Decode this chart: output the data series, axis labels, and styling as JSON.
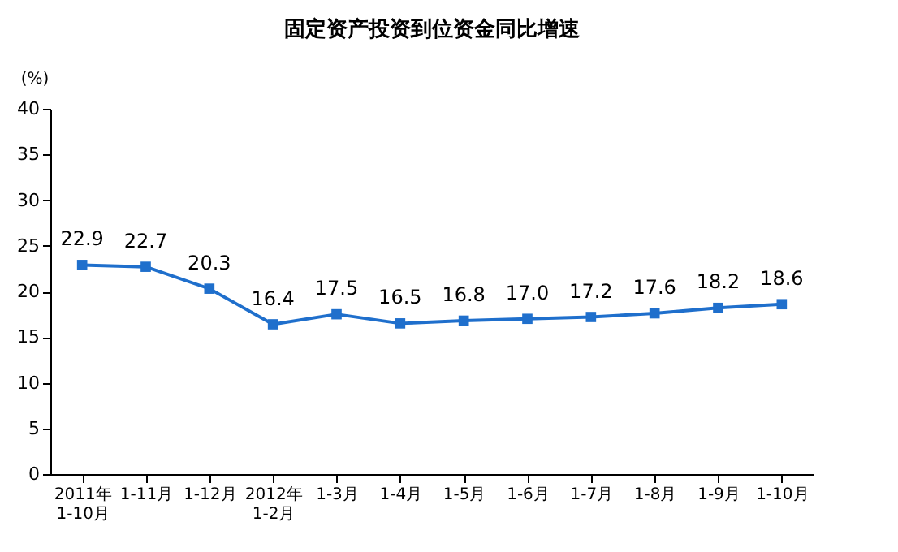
{
  "chart_data": {
    "type": "line",
    "title": "固定资产投资到位资金同比增速",
    "ylabel": "(%)",
    "categories": [
      "2011年\n1-10月",
      "1-11月",
      "1-12月",
      "2012年\n1-2月",
      "1-3月",
      "1-4月",
      "1-5月",
      "1-6月",
      "1-7月",
      "1-8月",
      "1-9月",
      "1-10月"
    ],
    "series": [
      {
        "color": "#1f6fcc",
        "values": [
          22.9,
          22.7,
          20.3,
          16.4,
          17.5,
          16.5,
          16.8,
          17.0,
          17.2,
          17.6,
          18.2,
          18.6
        ]
      }
    ],
    "ylim": [
      0,
      40
    ],
    "yticks": [
      0,
      5,
      10,
      15,
      20,
      25,
      30,
      35,
      40
    ],
    "value_labels": [
      "22.9",
      "22.7",
      "20.3",
      "16.4",
      "17.5",
      "16.5",
      "16.8",
      "17.0",
      "17.2",
      "17.6",
      "18.2",
      "18.6"
    ],
    "marker": "square",
    "line_style": "solid",
    "grid": false,
    "legend": false
  }
}
